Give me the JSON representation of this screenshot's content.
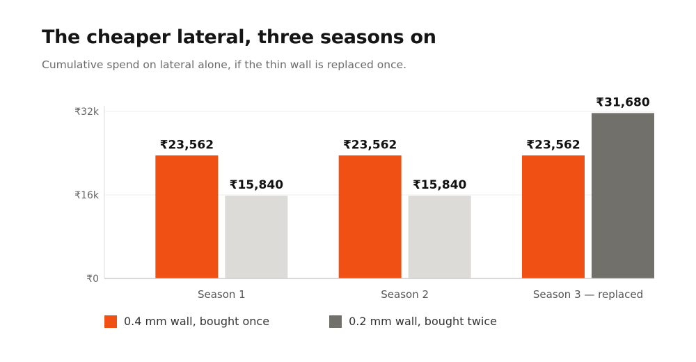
{
  "title": "The cheaper lateral, three seasons on",
  "subtitle": "Cumulative spend on lateral alone, if the thin wall is replaced once.",
  "chart_data": {
    "type": "bar",
    "categories": [
      "Season 1",
      "Season 2",
      "Season 3 — replaced"
    ],
    "series": [
      {
        "name": "0.4 mm wall, bought once",
        "values": [
          23562,
          23562,
          23562
        ],
        "labels": [
          "₹23,562",
          "₹23,562",
          "₹23,562"
        ],
        "color": "#f05013",
        "colors": [
          "#f05013",
          "#f05013",
          "#f05013"
        ]
      },
      {
        "name": "0.2 mm wall, bought twice",
        "values": [
          15840,
          15840,
          31680
        ],
        "labels": [
          "₹15,840",
          "₹15,840",
          "₹31,680"
        ],
        "color": "#72706a",
        "colors": [
          "#dcdbd7",
          "#dcdbd7",
          "#72706a"
        ]
      }
    ],
    "yticks": [
      {
        "value": 0,
        "label": "₹0"
      },
      {
        "value": 16000,
        "label": "₹16k"
      },
      {
        "value": 32000,
        "label": "₹32k"
      }
    ],
    "ylim": [
      0,
      32000
    ],
    "xlabel": "",
    "ylabel": "",
    "grid": true,
    "legend_position": "bottom-left"
  }
}
